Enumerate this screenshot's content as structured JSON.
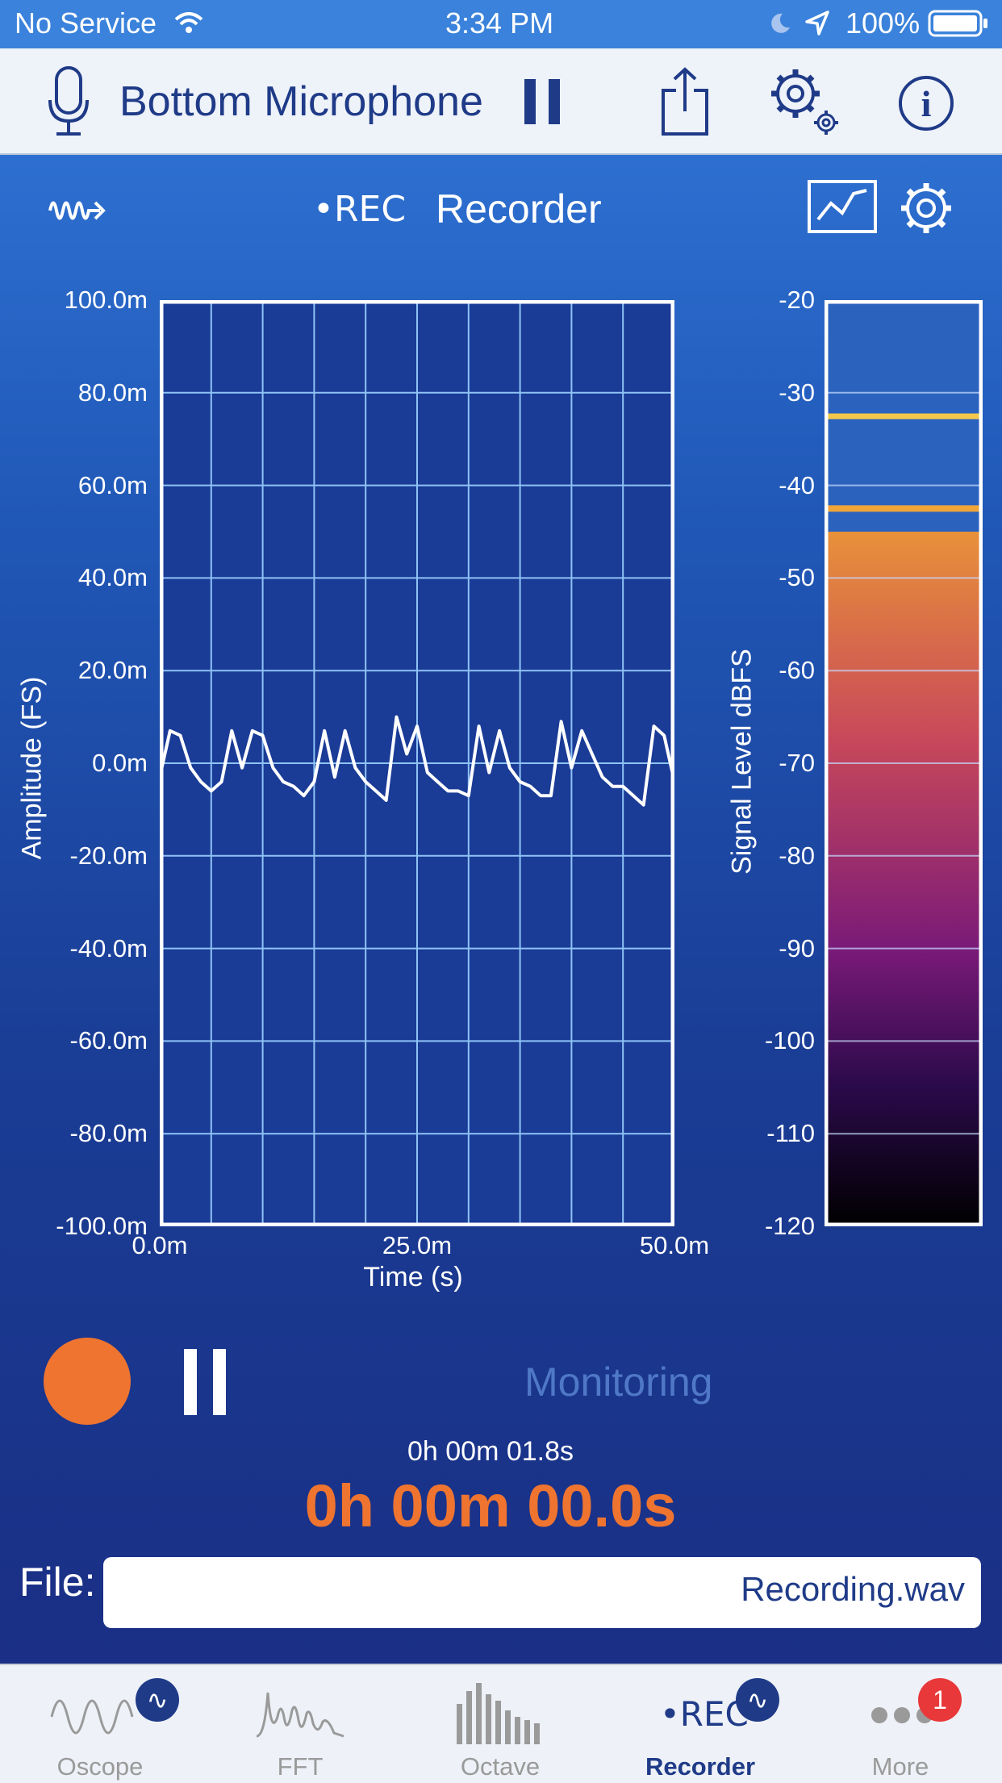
{
  "status_bar": {
    "carrier": "No Service",
    "time": "3:34 PM",
    "battery": "100%"
  },
  "toolbar": {
    "input_source": "Bottom Microphone"
  },
  "panel": {
    "rec_label": "•REC",
    "title": "Recorder"
  },
  "chart_data": [
    {
      "type": "line",
      "xlabel": "Time (s)",
      "ylabel": "Amplitude (FS)",
      "x_ticks": [
        "0.0m",
        "25.0m",
        "50.0m"
      ],
      "y_ticks": [
        "100.0m",
        "80.0m",
        "60.0m",
        "40.0m",
        "20.0m",
        "0.0m",
        "-20.0m",
        "-40.0m",
        "-60.0m",
        "-80.0m",
        "-100.0m"
      ],
      "xlim": [
        0,
        0.05
      ],
      "ylim": [
        -0.1,
        0.1
      ],
      "grid": true,
      "series": [
        {
          "x": [
            0,
            0.001,
            0.002,
            0.003,
            0.004,
            0.005,
            0.006,
            0.007,
            0.008,
            0.009,
            0.01,
            0.011,
            0.012,
            0.013,
            0.014,
            0.015,
            0.016,
            0.017,
            0.018,
            0.019,
            0.02,
            0.021,
            0.022,
            0.023,
            0.024,
            0.025,
            0.026,
            0.027,
            0.028,
            0.029,
            0.03,
            0.031,
            0.032,
            0.033,
            0.034,
            0.035,
            0.036,
            0.037,
            0.038,
            0.039,
            0.04,
            0.041,
            0.042,
            0.043,
            0.044,
            0.045,
            0.046,
            0.047,
            0.048,
            0.049,
            0.05
          ],
          "y": [
            -0.003,
            0.007,
            0.006,
            -0.001,
            -0.004,
            -0.006,
            -0.004,
            0.007,
            -0.001,
            0.007,
            0.006,
            -0.001,
            -0.004,
            -0.005,
            -0.007,
            -0.004,
            0.007,
            -0.003,
            0.007,
            -0.001,
            -0.004,
            -0.006,
            -0.008,
            0.01,
            0.002,
            0.008,
            -0.002,
            -0.004,
            -0.006,
            -0.006,
            -0.007,
            0.008,
            -0.002,
            0.007,
            -0.001,
            -0.004,
            -0.005,
            -0.007,
            -0.007,
            0.009,
            -0.001,
            0.007,
            0.002,
            -0.003,
            -0.005,
            -0.005,
            -0.007,
            -0.009,
            0.008,
            0.006,
            -0.004
          ]
        }
      ]
    },
    {
      "type": "bar",
      "ylabel": "Signal Level dBFS",
      "y_ticks": [
        "-20",
        "-30",
        "-40",
        "-50",
        "-60",
        "-70",
        "-80",
        "-90",
        "-100",
        "-110",
        "-120"
      ],
      "ylim": [
        -120,
        -20
      ],
      "level": -45,
      "peak_hold": -42.5,
      "max_marker": -32.5,
      "colors": {
        "fill_top": "#e8913a",
        "fill_bottom": "#000000",
        "peak": "#f0a53a",
        "max": "#f4c84a"
      }
    }
  ],
  "monitor": {
    "status": "Monitoring",
    "elapsed": "0h 00m 01.8s",
    "recorded": "0h 00m 00.0s"
  },
  "file": {
    "label": "File:",
    "name": "Recording.wav"
  },
  "tabs": [
    {
      "label": "Oscope",
      "badge": "∿"
    },
    {
      "label": "FFT"
    },
    {
      "label": "Octave"
    },
    {
      "label": "Recorder",
      "icon_text": "•REC",
      "badge": "∿"
    },
    {
      "label": "More",
      "badge": "1"
    }
  ],
  "colors": {
    "accent": "#1f3b88",
    "record": "#ee7430",
    "badge_blue": "#1f3b88",
    "badge_red": "#e8383a"
  }
}
